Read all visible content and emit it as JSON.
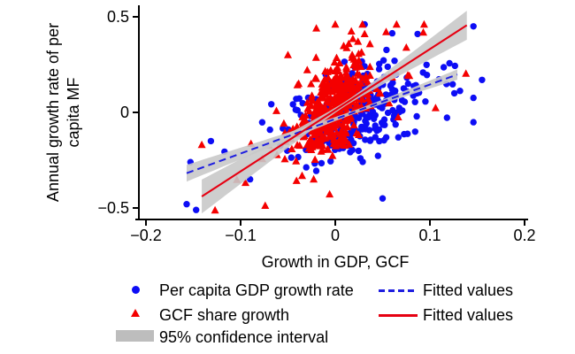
{
  "figure_colors": {
    "gdp_marker": "#0d0df5",
    "gcf_marker": "#f40000",
    "gdp_fit_line": "#1e1ee0",
    "gcf_fit_line": "#e60012",
    "ci_band": "#c9c9c9",
    "legend_swatch": "#bdbdbd",
    "axis": "#000000"
  },
  "chart_data": {
    "type": "scatter",
    "title": "",
    "xlabel": "Growth in GDP, GCF",
    "ylabel": "Annual growth rate of per capita MF",
    "ylabel_lines": [
      "Annual growth rate of per",
      "capita MF"
    ],
    "xlim": [
      -0.21,
      0.205
    ],
    "ylim": [
      -0.56,
      0.56
    ],
    "grid": false,
    "legend_position": "below",
    "x_ticks": {
      "values": [
        -0.2,
        -0.1,
        0,
        0.1,
        0.2
      ],
      "labels": [
        "−0.2",
        "−0.1",
        "0",
        "0.1",
        "0.2"
      ]
    },
    "y_ticks": {
      "values": [
        0.5,
        0,
        -0.5
      ],
      "labels": [
        "0.5",
        "0",
        "−0.5"
      ]
    },
    "series": [
      {
        "name": "Per capita GDP growth rate",
        "marker": "circle",
        "color": "#0d0df5",
        "n": 330,
        "seed": 20240613,
        "cluster": {
          "mean_x": 0.022,
          "sd_x": 0.034,
          "tail_frac": 0.12,
          "tail_mult": 2.6,
          "slope": 1.8,
          "intercept": -0.03,
          "resid_sd": 0.105,
          "clip_x": [
            -0.158,
            0.146
          ],
          "clip_y": [
            -0.505,
            0.45
          ]
        },
        "anchor_points": [
          [
            -0.157,
            -0.48
          ],
          [
            -0.147,
            -0.51
          ],
          [
            -0.153,
            -0.26
          ],
          [
            0.155,
            0.17
          ],
          [
            0.124,
            0.147
          ],
          [
            0.118,
            -0.028
          ],
          [
            0.087,
            0.41
          ],
          [
            0.031,
            0.46
          ],
          [
            -0.09,
            -0.35
          ],
          [
            0.05,
            -0.45
          ]
        ]
      },
      {
        "name": "GCF share growth",
        "marker": "triangle",
        "color": "#f40000",
        "n": 420,
        "seed": 987654321,
        "cluster": {
          "mean_x": -0.003,
          "sd_x": 0.02,
          "tail_frac": 0.12,
          "tail_mult": 2.4,
          "slope": 3.0,
          "intercept": 0.04,
          "resid_sd": 0.115,
          "clip_x": [
            -0.142,
            0.14
          ],
          "clip_y": [
            -0.512,
            0.46
          ]
        },
        "anchor_points": [
          [
            -0.141,
            -0.17
          ],
          [
            -0.127,
            -0.512
          ],
          [
            -0.074,
            -0.488
          ],
          [
            0.138,
            0.203
          ],
          [
            0.106,
            0.023
          ],
          [
            0.017,
            0.424
          ],
          [
            0.031,
            0.41
          ],
          [
            -0.05,
            0.3
          ],
          [
            0.0,
            0.46
          ],
          [
            -0.02,
            0.44
          ]
        ]
      }
    ],
    "fits": [
      {
        "name": "Fitted values",
        "for_series": "Per capita GDP growth rate",
        "style": "dashed",
        "color": "#1e1ee0",
        "x_start": -0.157,
        "y_start": -0.318,
        "x_end": 0.129,
        "y_end": 0.198,
        "ci": {
          "center_x": 0.022,
          "half_width_min": 0.009,
          "flare": 0.24,
          "label": "95% confidence interval"
        }
      },
      {
        "name": "Fitted values",
        "for_series": "GCF share growth",
        "style": "solid",
        "color": "#e60012",
        "x_start": -0.141,
        "y_start": -0.44,
        "x_end": 0.139,
        "y_end": 0.456,
        "ci": {
          "center_x": 0.01,
          "half_width_min": 0.012,
          "flare": 0.58,
          "label": "95% confidence interval"
        }
      }
    ]
  },
  "axes": {
    "x_label": "Growth in GDP, GCF",
    "y_label_line1": "Annual growth rate of per",
    "y_label_line2": "capita MF"
  },
  "legend": {
    "gdp_points_label": "Per capita GDP growth rate",
    "gcf_points_label": "GCF share growth",
    "ci_label": "95% confidence interval",
    "gdp_fit_label": "Fitted values",
    "gcf_fit_label": "Fitted values"
  }
}
